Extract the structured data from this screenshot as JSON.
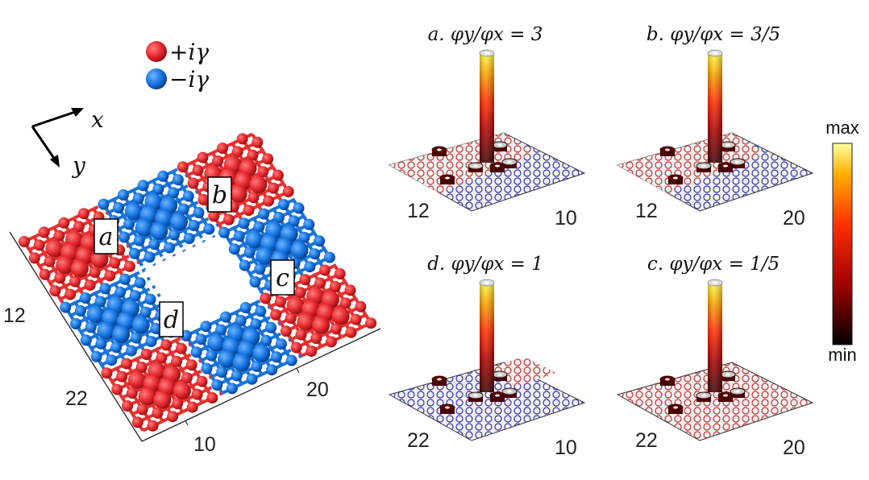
{
  "legend": {
    "items": [
      {
        "label": "+iγ",
        "color": "#e8302f"
      },
      {
        "label": "−iγ",
        "color": "#1a73d9"
      }
    ]
  },
  "axes_glyph": {
    "x_label": "x",
    "y_label": "y"
  },
  "lattice": {
    "region_labels": [
      "a",
      "b",
      "c",
      "d"
    ],
    "y_ticks": [
      "12",
      "22"
    ],
    "x_ticks": [
      "10",
      "20"
    ]
  },
  "panels": [
    {
      "title": "a. φy/φx = 3",
      "title_main": "a. ",
      "phi_ratio": "3",
      "y_tick": "12",
      "x_tick": "10",
      "plane": "mixed"
    },
    {
      "title": "b. φy/φx = 3/5",
      "title_main": "b. ",
      "phi_ratio": "3/5",
      "y_tick": "12",
      "x_tick": "20",
      "plane": "mixed"
    },
    {
      "title": "d. φy/φx = 1",
      "title_main": "d. ",
      "phi_ratio": "1",
      "y_tick": "22",
      "x_tick": "10",
      "plane": "blue"
    },
    {
      "title": "c. φy/φx = 1/5",
      "title_main": "c. ",
      "phi_ratio": "1/5",
      "y_tick": "22",
      "x_tick": "20",
      "plane": "red"
    }
  ],
  "colorbar": {
    "max_label": "max",
    "min_label": "min",
    "colormap": "hot",
    "colors": [
      "#000000",
      "#8b0000",
      "#ff2000",
      "#ff9000",
      "#ffff60"
    ]
  }
}
